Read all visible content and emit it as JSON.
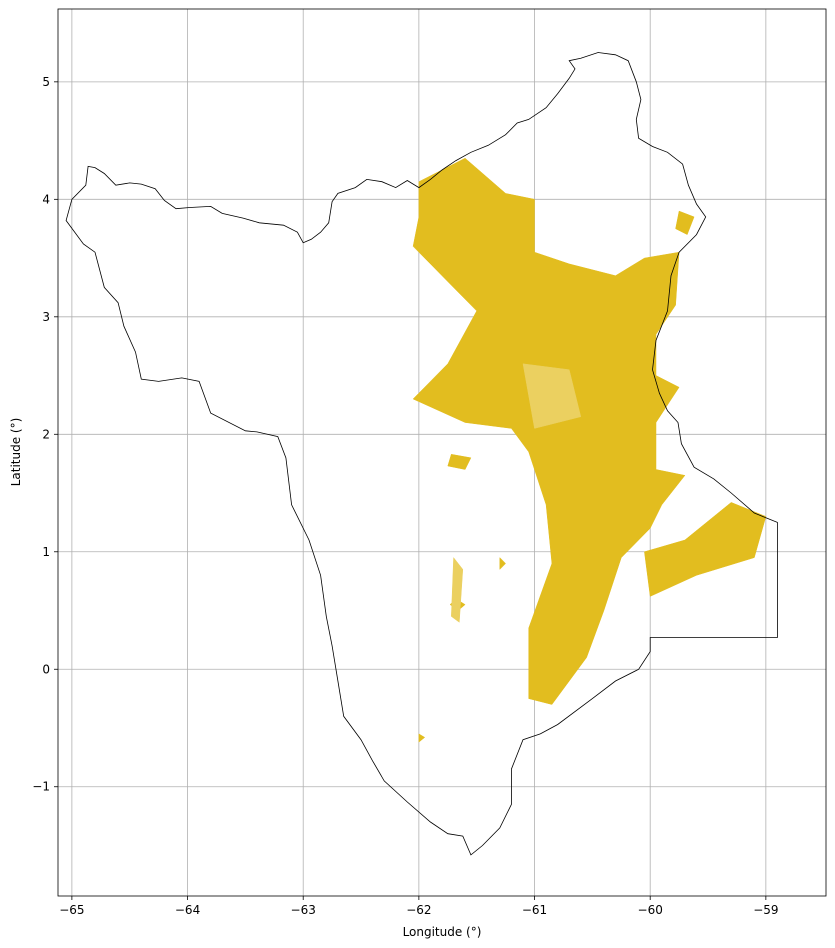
{
  "chart_data": {
    "type": "map",
    "xlabel": "Longitude (°)",
    "ylabel": "Latitude (°)",
    "xlim": [
      -65.12,
      -58.48
    ],
    "ylim": [
      -1.93,
      5.62
    ],
    "x_ticks": [
      -65,
      -64,
      -63,
      -62,
      -61,
      -60,
      -59
    ],
    "y_ticks": [
      -1,
      0,
      1,
      2,
      3,
      4,
      5
    ],
    "x_tick_labels": [
      "−65",
      "−64",
      "−63",
      "−62",
      "−61",
      "−60",
      "−59"
    ],
    "y_tick_labels": [
      "−1",
      "0",
      "1",
      "2",
      "3",
      "4",
      "5"
    ],
    "grid": true,
    "colors": {
      "fill": "#e2bd1f",
      "fill_light": "#ebd060",
      "outline": "#000000",
      "grid": "#b0b0b0"
    },
    "boundary": [
      [
        -64.86,
        4.28
      ],
      [
        -64.8,
        4.27
      ],
      [
        -64.72,
        4.22
      ],
      [
        -64.62,
        4.12
      ],
      [
        -64.5,
        4.14
      ],
      [
        -64.4,
        4.13
      ],
      [
        -64.28,
        4.09
      ],
      [
        -64.2,
        3.99
      ],
      [
        -64.1,
        3.92
      ],
      [
        -63.98,
        3.93
      ],
      [
        -63.8,
        3.94
      ],
      [
        -63.7,
        3.88
      ],
      [
        -63.52,
        3.84
      ],
      [
        -63.38,
        3.8
      ],
      [
        -63.17,
        3.78
      ],
      [
        -63.05,
        3.72
      ],
      [
        -63.0,
        3.63
      ],
      [
        -62.93,
        3.66
      ],
      [
        -62.85,
        3.72
      ],
      [
        -62.78,
        3.8
      ],
      [
        -62.75,
        3.98
      ],
      [
        -62.7,
        4.05
      ],
      [
        -62.55,
        4.1
      ],
      [
        -62.45,
        4.17
      ],
      [
        -62.32,
        4.15
      ],
      [
        -62.2,
        4.1
      ],
      [
        -62.1,
        4.16
      ],
      [
        -62.0,
        4.1
      ],
      [
        -61.9,
        4.17
      ],
      [
        -61.8,
        4.25
      ],
      [
        -61.68,
        4.33
      ],
      [
        -61.55,
        4.4
      ],
      [
        -61.4,
        4.46
      ],
      [
        -61.25,
        4.55
      ],
      [
        -61.15,
        4.65
      ],
      [
        -61.05,
        4.68
      ],
      [
        -60.9,
        4.78
      ],
      [
        -60.8,
        4.9
      ],
      [
        -60.7,
        5.03
      ],
      [
        -60.65,
        5.11
      ],
      [
        -60.7,
        5.18
      ],
      [
        -60.6,
        5.2
      ],
      [
        -60.45,
        5.25
      ],
      [
        -60.3,
        5.23
      ],
      [
        -60.19,
        5.18
      ],
      [
        -60.12,
        5.0
      ],
      [
        -60.08,
        4.85
      ],
      [
        -60.12,
        4.68
      ],
      [
        -60.1,
        4.52
      ],
      [
        -59.98,
        4.45
      ],
      [
        -59.85,
        4.4
      ],
      [
        -59.72,
        4.3
      ],
      [
        -59.67,
        4.12
      ],
      [
        -59.6,
        3.96
      ],
      [
        -59.52,
        3.85
      ],
      [
        -59.6,
        3.7
      ],
      [
        -59.75,
        3.55
      ],
      [
        -59.82,
        3.35
      ],
      [
        -59.85,
        3.05
      ],
      [
        -59.95,
        2.8
      ],
      [
        -59.98,
        2.55
      ],
      [
        -59.92,
        2.35
      ],
      [
        -59.85,
        2.2
      ],
      [
        -59.76,
        2.1
      ],
      [
        -59.73,
        1.92
      ],
      [
        -59.62,
        1.72
      ],
      [
        -59.45,
        1.62
      ],
      [
        -59.3,
        1.5
      ],
      [
        -59.1,
        1.33
      ],
      [
        -58.9,
        1.25
      ],
      [
        -58.9,
        0.27
      ],
      [
        -60.0,
        0.27
      ],
      [
        -60.0,
        0.15
      ],
      [
        -60.1,
        0.0
      ],
      [
        -60.3,
        -0.1
      ],
      [
        -60.5,
        -0.25
      ],
      [
        -60.8,
        -0.47
      ],
      [
        -60.95,
        -0.55
      ],
      [
        -61.1,
        -0.6
      ],
      [
        -61.2,
        -0.85
      ],
      [
        -61.2,
        -1.15
      ],
      [
        -61.3,
        -1.35
      ],
      [
        -61.45,
        -1.5
      ],
      [
        -61.55,
        -1.58
      ],
      [
        -61.62,
        -1.42
      ],
      [
        -61.75,
        -1.4
      ],
      [
        -61.9,
        -1.3
      ],
      [
        -62.1,
        -1.13
      ],
      [
        -62.3,
        -0.95
      ],
      [
        -62.4,
        -0.78
      ],
      [
        -62.5,
        -0.6
      ],
      [
        -62.65,
        -0.4
      ],
      [
        -62.7,
        -0.1
      ],
      [
        -62.75,
        0.2
      ],
      [
        -62.8,
        0.45
      ],
      [
        -62.85,
        0.8
      ],
      [
        -62.95,
        1.1
      ],
      [
        -63.1,
        1.4
      ],
      [
        -63.15,
        1.8
      ],
      [
        -63.22,
        1.98
      ],
      [
        -63.4,
        2.02
      ],
      [
        -63.5,
        2.03
      ],
      [
        -63.8,
        2.18
      ],
      [
        -63.9,
        2.45
      ],
      [
        -64.05,
        2.48
      ],
      [
        -64.25,
        2.45
      ],
      [
        -64.4,
        2.47
      ],
      [
        -64.45,
        2.7
      ],
      [
        -64.55,
        2.92
      ],
      [
        -64.6,
        3.12
      ],
      [
        -64.72,
        3.25
      ],
      [
        -64.8,
        3.55
      ],
      [
        -64.9,
        3.62
      ],
      [
        -65.05,
        3.82
      ],
      [
        -65.0,
        4.0
      ],
      [
        -64.88,
        4.12
      ],
      [
        -64.86,
        4.28
      ]
    ],
    "farm_regions": [
      {
        "shade": "fill",
        "points": [
          [
            -62.0,
            4.15
          ],
          [
            -61.6,
            4.35
          ],
          [
            -61.25,
            4.05
          ],
          [
            -61.0,
            4.0
          ],
          [
            -61.0,
            3.55
          ],
          [
            -60.7,
            3.45
          ],
          [
            -60.3,
            3.35
          ],
          [
            -60.05,
            3.5
          ],
          [
            -59.75,
            3.55
          ],
          [
            -59.78,
            3.1
          ],
          [
            -59.95,
            2.85
          ],
          [
            -59.95,
            2.5
          ],
          [
            -59.75,
            2.4
          ],
          [
            -59.95,
            2.1
          ],
          [
            -59.95,
            1.7
          ],
          [
            -59.7,
            1.65
          ],
          [
            -59.9,
            1.4
          ],
          [
            -60.0,
            1.2
          ],
          [
            -60.25,
            0.95
          ],
          [
            -60.4,
            0.5
          ],
          [
            -60.55,
            0.1
          ],
          [
            -60.85,
            -0.3
          ],
          [
            -61.05,
            -0.25
          ],
          [
            -61.05,
            0.35
          ],
          [
            -60.85,
            0.9
          ],
          [
            -60.9,
            1.4
          ],
          [
            -61.05,
            1.85
          ],
          [
            -61.2,
            2.05
          ],
          [
            -61.6,
            2.1
          ],
          [
            -62.05,
            2.3
          ],
          [
            -61.75,
            2.6
          ],
          [
            -61.5,
            3.05
          ],
          [
            -61.8,
            3.35
          ],
          [
            -62.05,
            3.6
          ],
          [
            -62.0,
            3.85
          ]
        ]
      },
      {
        "shade": "fill",
        "points": [
          [
            -60.05,
            1.0
          ],
          [
            -59.7,
            1.1
          ],
          [
            -59.3,
            1.42
          ],
          [
            -59.0,
            1.3
          ],
          [
            -59.1,
            0.95
          ],
          [
            -59.6,
            0.8
          ],
          [
            -60.0,
            0.62
          ]
        ]
      },
      {
        "shade": "fill",
        "points": [
          [
            -59.75,
            3.9
          ],
          [
            -59.62,
            3.85
          ],
          [
            -59.68,
            3.7
          ],
          [
            -59.78,
            3.75
          ]
        ]
      },
      {
        "shade": "fill",
        "points": [
          [
            -61.72,
            1.83
          ],
          [
            -61.55,
            1.8
          ],
          [
            -61.6,
            1.7
          ],
          [
            -61.75,
            1.73
          ]
        ]
      },
      {
        "shade": "fill",
        "points": [
          [
            -61.68,
            0.6
          ],
          [
            -61.6,
            0.55
          ],
          [
            -61.66,
            0.5
          ],
          [
            -61.73,
            0.55
          ]
        ]
      },
      {
        "shade": "fill",
        "points": [
          [
            -61.3,
            0.95
          ],
          [
            -61.25,
            0.9
          ],
          [
            -61.3,
            0.85
          ]
        ]
      },
      {
        "shade": "fill",
        "points": [
          [
            -62.0,
            -0.55
          ],
          [
            -61.95,
            -0.58
          ],
          [
            -62.0,
            -0.62
          ]
        ]
      },
      {
        "shade": "fill_light",
        "points": [
          [
            -61.1,
            2.6
          ],
          [
            -60.7,
            2.55
          ],
          [
            -60.6,
            2.15
          ],
          [
            -61.0,
            2.05
          ]
        ]
      },
      {
        "shade": "fill_light",
        "points": [
          [
            -61.7,
            0.95
          ],
          [
            -61.62,
            0.85
          ],
          [
            -61.65,
            0.4
          ],
          [
            -61.72,
            0.45
          ]
        ]
      }
    ]
  }
}
